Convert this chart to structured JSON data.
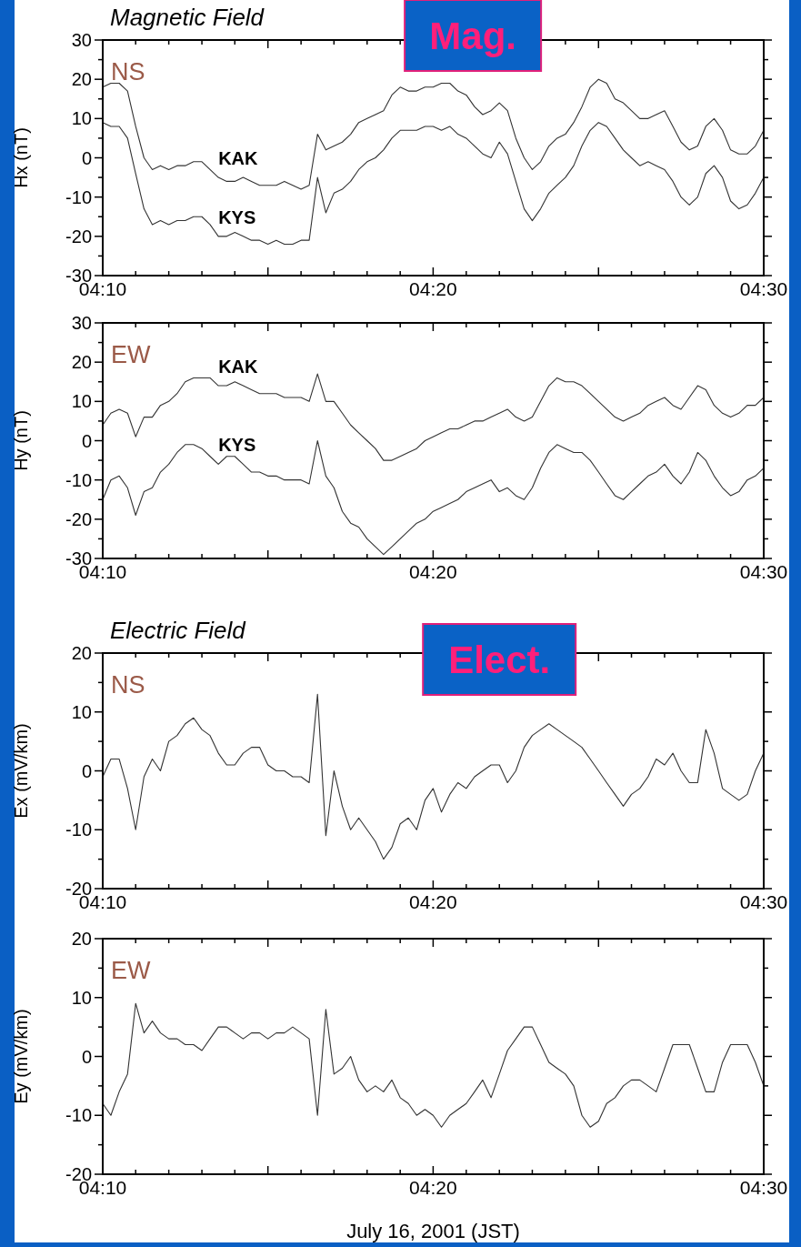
{
  "chart_data": [
    {
      "type": "line",
      "title": "Magnetic Field",
      "ylabel": "Hx (nT)",
      "annotations": [
        "NS",
        "Mag."
      ],
      "xlim": [
        4.1667,
        4.5
      ],
      "ylim": [
        -30,
        30
      ],
      "xticks": [
        {
          "value": 4.1667,
          "label": "04:10"
        },
        {
          "value": 4.1833,
          "label": null
        },
        {
          "value": 4.2,
          "label": null
        },
        {
          "value": 4.2167,
          "label": null
        },
        {
          "value": 4.2333,
          "label": null
        },
        {
          "value": 4.25,
          "label": null
        },
        {
          "value": 4.2667,
          "label": null
        },
        {
          "value": 4.2833,
          "label": null
        },
        {
          "value": 4.3,
          "label": null
        },
        {
          "value": 4.3167,
          "label": null
        },
        {
          "value": 4.3333,
          "label": "04:20"
        },
        {
          "value": 4.35,
          "label": null
        },
        {
          "value": 4.3667,
          "label": null
        },
        {
          "value": 4.3833,
          "label": null
        },
        {
          "value": 4.4,
          "label": null
        },
        {
          "value": 4.4167,
          "label": null
        },
        {
          "value": 4.4333,
          "label": null
        },
        {
          "value": 4.45,
          "label": null
        },
        {
          "value": 4.4667,
          "label": null
        },
        {
          "value": 4.4833,
          "label": null
        },
        {
          "value": 4.5,
          "label": "04:30"
        }
      ],
      "yticks": [
        -30,
        {
          "value": -25,
          "label": null
        },
        -20,
        {
          "value": -15,
          "label": null
        },
        -10,
        {
          "value": -5,
          "label": null
        },
        0,
        {
          "value": 5,
          "label": null
        },
        10,
        {
          "value": 15,
          "label": null
        },
        20,
        {
          "value": 25,
          "label": null
        },
        30
      ],
      "x": [
        4.1667,
        4.1708,
        4.175,
        4.1792,
        4.1833,
        4.1875,
        4.1917,
        4.1958,
        4.2,
        4.2042,
        4.2083,
        4.2125,
        4.2167,
        4.2208,
        4.225,
        4.2292,
        4.2333,
        4.2375,
        4.2417,
        4.2458,
        4.25,
        4.2542,
        4.2583,
        4.2625,
        4.2667,
        4.2708,
        4.275,
        4.2792,
        4.2833,
        4.2875,
        4.2917,
        4.2958,
        4.3,
        4.3042,
        4.3083,
        4.3125,
        4.3167,
        4.3208,
        4.325,
        4.3292,
        4.3333,
        4.3375,
        4.3417,
        4.3458,
        4.35,
        4.3542,
        4.3583,
        4.3625,
        4.3667,
        4.3708,
        4.375,
        4.3792,
        4.3833,
        4.3875,
        4.3917,
        4.3958,
        4.4,
        4.4042,
        4.4083,
        4.4125,
        4.4167,
        4.4208,
        4.425,
        4.4292,
        4.4333,
        4.4375,
        4.4417,
        4.4458,
        4.45,
        4.4542,
        4.4583,
        4.4625,
        4.4667,
        4.4708,
        4.475,
        4.4792,
        4.4833,
        4.4875,
        4.4917,
        4.4958,
        4.5
      ],
      "series": [
        {
          "name": "KAK",
          "color": "#333333",
          "values": [
            18,
            19,
            19,
            17,
            8,
            0,
            -3,
            -2,
            -3,
            -2,
            -2,
            -1,
            -1,
            -3,
            -5,
            -6,
            -6,
            -5,
            -6,
            -7,
            -7,
            -7,
            -6,
            -7,
            -8,
            -7,
            6,
            2,
            3,
            4,
            6,
            9,
            10,
            11,
            12,
            16,
            18,
            17,
            17,
            18,
            18,
            19,
            19,
            17,
            16,
            13,
            11,
            12,
            14,
            12,
            5,
            0,
            -3,
            -1,
            3,
            5,
            6,
            9,
            13,
            18,
            20,
            19,
            15,
            14,
            12,
            10,
            10,
            11,
            12,
            8,
            4,
            2,
            3,
            8,
            10,
            7,
            2,
            1,
            1,
            3,
            7
          ]
        },
        {
          "name": "KYS",
          "color": "#333333",
          "values": [
            9,
            8,
            8,
            5,
            -4,
            -13,
            -17,
            -16,
            -17,
            -16,
            -16,
            -15,
            -15,
            -17,
            -20,
            -20,
            -19,
            -20,
            -21,
            -21,
            -22,
            -21,
            -22,
            -22,
            -21,
            -21,
            -5,
            -14,
            -9,
            -8,
            -6,
            -3,
            -1,
            0,
            2,
            5,
            7,
            7,
            7,
            8,
            8,
            7,
            8,
            6,
            5,
            3,
            1,
            0,
            4,
            1,
            -6,
            -13,
            -16,
            -13,
            -9,
            -7,
            -5,
            -2,
            3,
            7,
            9,
            8,
            5,
            2,
            0,
            -2,
            -1,
            -2,
            -3,
            -6,
            -10,
            -12,
            -10,
            -4,
            -2,
            -5,
            -11,
            -13,
            -12,
            -9,
            -5
          ]
        }
      ]
    },
    {
      "type": "line",
      "ylabel": "Hy (nT)",
      "annotations": [
        "EW"
      ],
      "xlim": [
        4.1667,
        4.5
      ],
      "ylim": [
        -30,
        30
      ],
      "xticks": [
        {
          "value": 4.1667,
          "label": "04:10"
        },
        {
          "value": 4.1833,
          "label": null
        },
        {
          "value": 4.2,
          "label": null
        },
        {
          "value": 4.2167,
          "label": null
        },
        {
          "value": 4.2333,
          "label": null
        },
        {
          "value": 4.25,
          "label": null
        },
        {
          "value": 4.2667,
          "label": null
        },
        {
          "value": 4.2833,
          "label": null
        },
        {
          "value": 4.3,
          "label": null
        },
        {
          "value": 4.3167,
          "label": null
        },
        {
          "value": 4.3333,
          "label": "04:20"
        },
        {
          "value": 4.35,
          "label": null
        },
        {
          "value": 4.3667,
          "label": null
        },
        {
          "value": 4.3833,
          "label": null
        },
        {
          "value": 4.4,
          "label": null
        },
        {
          "value": 4.4167,
          "label": null
        },
        {
          "value": 4.4333,
          "label": null
        },
        {
          "value": 4.45,
          "label": null
        },
        {
          "value": 4.4667,
          "label": null
        },
        {
          "value": 4.4833,
          "label": null
        },
        {
          "value": 4.5,
          "label": "04:30"
        }
      ],
      "yticks": [
        -30,
        {
          "value": -25,
          "label": null
        },
        -20,
        {
          "value": -15,
          "label": null
        },
        -10,
        {
          "value": -5,
          "label": null
        },
        0,
        {
          "value": 5,
          "label": null
        },
        10,
        {
          "value": 15,
          "label": null
        },
        20,
        {
          "value": 25,
          "label": null
        },
        30
      ],
      "x": [
        4.1667,
        4.1708,
        4.175,
        4.1792,
        4.1833,
        4.1875,
        4.1917,
        4.1958,
        4.2,
        4.2042,
        4.2083,
        4.2125,
        4.2167,
        4.2208,
        4.225,
        4.2292,
        4.2333,
        4.2375,
        4.2417,
        4.2458,
        4.25,
        4.2542,
        4.2583,
        4.2625,
        4.2667,
        4.2708,
        4.275,
        4.2792,
        4.2833,
        4.2875,
        4.2917,
        4.2958,
        4.3,
        4.3042,
        4.3083,
        4.3125,
        4.3167,
        4.3208,
        4.325,
        4.3292,
        4.3333,
        4.3375,
        4.3417,
        4.3458,
        4.35,
        4.3542,
        4.3583,
        4.3625,
        4.3667,
        4.3708,
        4.375,
        4.3792,
        4.3833,
        4.3875,
        4.3917,
        4.3958,
        4.4,
        4.4042,
        4.4083,
        4.4125,
        4.4167,
        4.4208,
        4.425,
        4.4292,
        4.4333,
        4.4375,
        4.4417,
        4.4458,
        4.45,
        4.4542,
        4.4583,
        4.4625,
        4.4667,
        4.4708,
        4.475,
        4.4792,
        4.4833,
        4.4875,
        4.4917,
        4.4958,
        4.5
      ],
      "series": [
        {
          "name": "KAK",
          "color": "#333333",
          "values": [
            4,
            7,
            8,
            7,
            1,
            6,
            6,
            9,
            10,
            12,
            15,
            16,
            16,
            16,
            14,
            14,
            15,
            14,
            13,
            12,
            12,
            12,
            11,
            11,
            11,
            10,
            17,
            10,
            10,
            7,
            4,
            2,
            0,
            -2,
            -5,
            -5,
            -4,
            -3,
            -2,
            0,
            1,
            2,
            3,
            3,
            4,
            5,
            5,
            6,
            7,
            8,
            6,
            5,
            6,
            10,
            14,
            16,
            15,
            15,
            14,
            12,
            10,
            8,
            6,
            5,
            6,
            7,
            9,
            10,
            11,
            9,
            8,
            11,
            14,
            13,
            9,
            7,
            6,
            7,
            9,
            9,
            11
          ]
        },
        {
          "name": "KYS",
          "color": "#333333",
          "values": [
            -15,
            -10,
            -9,
            -12,
            -19,
            -13,
            -12,
            -8,
            -6,
            -3,
            -1,
            -1,
            -2,
            -4,
            -6,
            -4,
            -4,
            -6,
            -8,
            -8,
            -9,
            -9,
            -10,
            -10,
            -10,
            -11,
            0,
            -9,
            -12,
            -18,
            -21,
            -22,
            -25,
            -27,
            -29,
            -27,
            -25,
            -23,
            -21,
            -20,
            -18,
            -17,
            -16,
            -15,
            -13,
            -12,
            -11,
            -10,
            -13,
            -12,
            -14,
            -15,
            -12,
            -7,
            -3,
            -1,
            -2,
            -3,
            -3,
            -5,
            -8,
            -11,
            -14,
            -15,
            -13,
            -11,
            -9,
            -8,
            -6,
            -9,
            -11,
            -8,
            -3,
            -5,
            -9,
            -12,
            -14,
            -13,
            -10,
            -9,
            -7
          ]
        }
      ]
    },
    {
      "type": "line",
      "title": "Electric Field",
      "ylabel": "Ex (mV/km)",
      "annotations": [
        "NS",
        "Elect."
      ],
      "xlim": [
        4.1667,
        4.5
      ],
      "ylim": [
        -20,
        20
      ],
      "xticks": [
        {
          "value": 4.1667,
          "label": "04:10"
        },
        {
          "value": 4.1833,
          "label": null
        },
        {
          "value": 4.2,
          "label": null
        },
        {
          "value": 4.2167,
          "label": null
        },
        {
          "value": 4.2333,
          "label": null
        },
        {
          "value": 4.25,
          "label": null
        },
        {
          "value": 4.2667,
          "label": null
        },
        {
          "value": 4.2833,
          "label": null
        },
        {
          "value": 4.3,
          "label": null
        },
        {
          "value": 4.3167,
          "label": null
        },
        {
          "value": 4.3333,
          "label": "04:20"
        },
        {
          "value": 4.35,
          "label": null
        },
        {
          "value": 4.3667,
          "label": null
        },
        {
          "value": 4.3833,
          "label": null
        },
        {
          "value": 4.4,
          "label": null
        },
        {
          "value": 4.4167,
          "label": null
        },
        {
          "value": 4.4333,
          "label": null
        },
        {
          "value": 4.45,
          "label": null
        },
        {
          "value": 4.4667,
          "label": null
        },
        {
          "value": 4.4833,
          "label": null
        },
        {
          "value": 4.5,
          "label": "04:30"
        }
      ],
      "yticks": [
        -20,
        {
          "value": -15,
          "label": null
        },
        -10,
        {
          "value": -5,
          "label": null
        },
        0,
        {
          "value": 5,
          "label": null
        },
        10,
        {
          "value": 15,
          "label": null
        },
        20
      ],
      "x": [
        4.1667,
        4.1708,
        4.175,
        4.1792,
        4.1833,
        4.1875,
        4.1917,
        4.1958,
        4.2,
        4.2042,
        4.2083,
        4.2125,
        4.2167,
        4.2208,
        4.225,
        4.2292,
        4.2333,
        4.2375,
        4.2417,
        4.2458,
        4.25,
        4.2542,
        4.2583,
        4.2625,
        4.2667,
        4.2708,
        4.275,
        4.2792,
        4.2833,
        4.2875,
        4.2917,
        4.2958,
        4.3,
        4.3042,
        4.3083,
        4.3125,
        4.3167,
        4.3208,
        4.325,
        4.3292,
        4.3333,
        4.3375,
        4.3417,
        4.3458,
        4.35,
        4.3542,
        4.3583,
        4.3625,
        4.3667,
        4.3708,
        4.375,
        4.3792,
        4.3833,
        4.3875,
        4.3917,
        4.3958,
        4.4,
        4.4042,
        4.4083,
        4.4125,
        4.4167,
        4.4208,
        4.425,
        4.4292,
        4.4333,
        4.4375,
        4.4417,
        4.4458,
        4.45,
        4.4542,
        4.4583,
        4.4625,
        4.4667,
        4.4708,
        4.475,
        4.4792,
        4.4833,
        4.4875,
        4.4917,
        4.4958,
        4.5
      ],
      "series": [
        {
          "color": "#333333",
          "values": [
            -1,
            2,
            2,
            -3,
            -10,
            -1,
            2,
            0,
            5,
            6,
            8,
            9,
            7,
            6,
            3,
            1,
            1,
            3,
            4,
            4,
            1,
            0,
            0,
            -1,
            -1,
            -2,
            13,
            -11,
            0,
            -6,
            -10,
            -8,
            -10,
            -12,
            -15,
            -13,
            -9,
            -8,
            -10,
            -5,
            -3,
            -7,
            -4,
            -2,
            -3,
            -1,
            0,
            1,
            1,
            -2,
            0,
            4,
            6,
            7,
            8,
            7,
            6,
            5,
            4,
            2,
            0,
            -2,
            -4,
            -6,
            -4,
            -3,
            -1,
            2,
            1,
            3,
            0,
            -2,
            -2,
            7,
            3,
            -3,
            -4,
            -5,
            -4,
            0,
            3
          ]
        }
      ]
    },
    {
      "type": "line",
      "ylabel": "Ey (mV/km)",
      "xlabel": "July 16, 2001 (JST)",
      "annotations": [
        "EW"
      ],
      "xlim": [
        4.1667,
        4.5
      ],
      "ylim": [
        -20,
        20
      ],
      "xticks": [
        {
          "value": 4.1667,
          "label": "04:10"
        },
        {
          "value": 4.1833,
          "label": null
        },
        {
          "value": 4.2,
          "label": null
        },
        {
          "value": 4.2167,
          "label": null
        },
        {
          "value": 4.2333,
          "label": null
        },
        {
          "value": 4.25,
          "label": null
        },
        {
          "value": 4.2667,
          "label": null
        },
        {
          "value": 4.2833,
          "label": null
        },
        {
          "value": 4.3,
          "label": null
        },
        {
          "value": 4.3167,
          "label": null
        },
        {
          "value": 4.3333,
          "label": "04:20"
        },
        {
          "value": 4.35,
          "label": null
        },
        {
          "value": 4.3667,
          "label": null
        },
        {
          "value": 4.3833,
          "label": null
        },
        {
          "value": 4.4,
          "label": null
        },
        {
          "value": 4.4167,
          "label": null
        },
        {
          "value": 4.4333,
          "label": null
        },
        {
          "value": 4.45,
          "label": null
        },
        {
          "value": 4.4667,
          "label": null
        },
        {
          "value": 4.4833,
          "label": null
        },
        {
          "value": 4.5,
          "label": "04:30"
        }
      ],
      "yticks": [
        -20,
        {
          "value": -15,
          "label": null
        },
        -10,
        {
          "value": -5,
          "label": null
        },
        0,
        {
          "value": 5,
          "label": null
        },
        10,
        {
          "value": 15,
          "label": null
        },
        20
      ],
      "x": [
        4.1667,
        4.1708,
        4.175,
        4.1792,
        4.1833,
        4.1875,
        4.1917,
        4.1958,
        4.2,
        4.2042,
        4.2083,
        4.2125,
        4.2167,
        4.2208,
        4.225,
        4.2292,
        4.2333,
        4.2375,
        4.2417,
        4.2458,
        4.25,
        4.2542,
        4.2583,
        4.2625,
        4.2667,
        4.2708,
        4.275,
        4.2792,
        4.2833,
        4.2875,
        4.2917,
        4.2958,
        4.3,
        4.3042,
        4.3083,
        4.3125,
        4.3167,
        4.3208,
        4.325,
        4.3292,
        4.3333,
        4.3375,
        4.3417,
        4.3458,
        4.35,
        4.3542,
        4.3583,
        4.3625,
        4.3667,
        4.3708,
        4.375,
        4.3792,
        4.3833,
        4.3875,
        4.3917,
        4.3958,
        4.4,
        4.4042,
        4.4083,
        4.4125,
        4.4167,
        4.4208,
        4.425,
        4.4292,
        4.4333,
        4.4375,
        4.4417,
        4.4458,
        4.45,
        4.4542,
        4.4583,
        4.4625,
        4.4667,
        4.4708,
        4.475,
        4.4792,
        4.4833,
        4.4875,
        4.4917,
        4.4958,
        4.5
      ],
      "series": [
        {
          "color": "#333333",
          "values": [
            -8,
            -10,
            -6,
            -3,
            9,
            4,
            6,
            4,
            3,
            3,
            2,
            2,
            1,
            3,
            5,
            5,
            4,
            3,
            4,
            4,
            3,
            4,
            4,
            5,
            4,
            3,
            -10,
            8,
            -3,
            -2,
            0,
            -4,
            -6,
            -5,
            -6,
            -4,
            -7,
            -8,
            -10,
            -9,
            -10,
            -12,
            -10,
            -9,
            -8,
            -6,
            -4,
            -7,
            -3,
            1,
            3,
            5,
            5,
            2,
            -1,
            -2,
            -3,
            -5,
            -10,
            -12,
            -11,
            -8,
            -7,
            -5,
            -4,
            -4,
            -5,
            -6,
            -2,
            2,
            2,
            2,
            -2,
            -6,
            -6,
            -1,
            2,
            2,
            2,
            -1,
            -5
          ]
        }
      ]
    }
  ]
}
